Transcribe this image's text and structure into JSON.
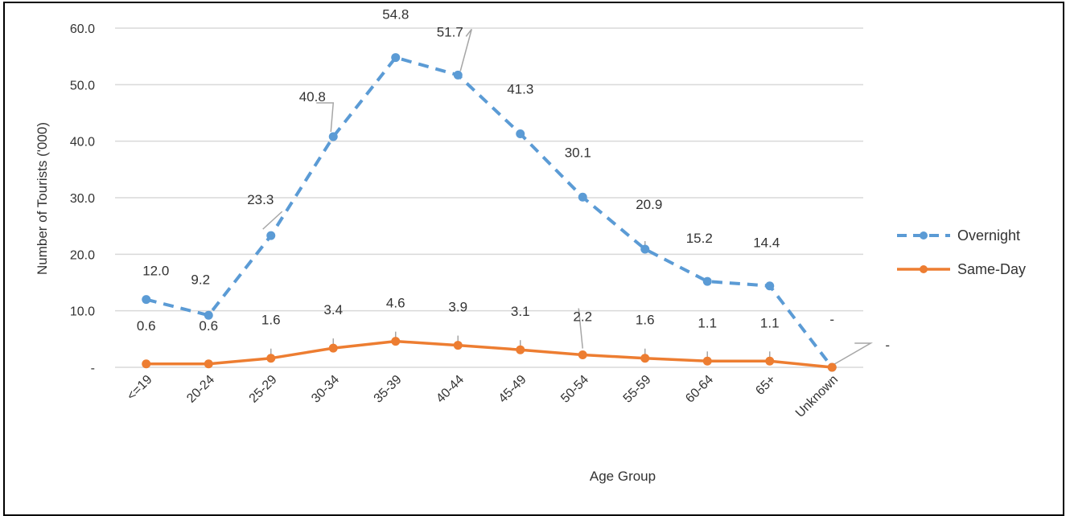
{
  "chart_data": {
    "type": "line",
    "categories": [
      "<=19",
      "20-24",
      "25-29",
      "30-34",
      "35-39",
      "40-44",
      "45-49",
      "50-54",
      "55-59",
      "60-64",
      "65+",
      "Unknown"
    ],
    "series": [
      {
        "name": "Overnight",
        "values": [
          12.0,
          9.2,
          23.3,
          40.8,
          54.8,
          51.7,
          41.3,
          30.1,
          20.9,
          15.2,
          14.4,
          0
        ],
        "labels": [
          "12.0",
          "9.2",
          "23.3",
          "40.8",
          "54.8",
          "51.7",
          "41.3",
          "30.1",
          "20.9",
          "15.2",
          "14.4",
          "-"
        ],
        "color": "#5B9BD5",
        "line_style": "dashed"
      },
      {
        "name": "Same-Day",
        "values": [
          0.6,
          0.6,
          1.6,
          3.4,
          4.6,
          3.9,
          3.1,
          2.2,
          1.6,
          1.1,
          1.1,
          0
        ],
        "labels": [
          "0.6",
          "0.6",
          "1.6",
          "3.4",
          "4.6",
          "3.9",
          "3.1",
          "2.2",
          "1.6",
          "1.1",
          "1.1",
          "-"
        ],
        "color": "#ED7D31",
        "line_style": "solid"
      }
    ],
    "xlabel": "Age Group",
    "ylabel": "Number of Tourists ('000)",
    "ylim": [
      0,
      60
    ],
    "yticks": [
      0,
      10,
      20,
      30,
      40,
      50,
      60
    ],
    "ytick_labels": [
      "-",
      "10.0",
      "20.0",
      "30.0",
      "40.0",
      "50.0",
      "60.0"
    ],
    "grid": "horizontal",
    "legend_position": "right"
  }
}
